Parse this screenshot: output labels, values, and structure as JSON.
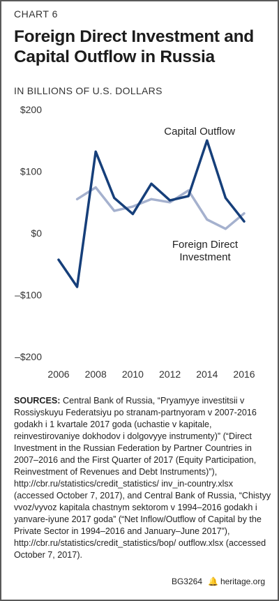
{
  "header": {
    "label": "CHART 6",
    "title": "Foreign Direct Investment and Capital Outflow in Russia",
    "subtitle": "IN BILLIONS OF U.S. DOLLARS"
  },
  "chart_data": {
    "type": "line",
    "x": [
      2006,
      2007,
      2008,
      2009,
      2010,
      2011,
      2012,
      2013,
      2014,
      2015,
      2016
    ],
    "xticks": [
      "2006",
      "2008",
      "2010",
      "2012",
      "2014",
      "2016"
    ],
    "yticks": [
      "$200",
      "$100",
      "$0",
      "–$100",
      "–$200"
    ],
    "ylim": [
      -200,
      200
    ],
    "xlim": [
      2006,
      2016
    ],
    "grid": false,
    "series": [
      {
        "name": "Capital Outflow",
        "color": "#163f7a",
        "values": [
          -43,
          -87,
          132,
          57,
          31,
          80,
          53,
          60,
          150,
          57,
          19
        ]
      },
      {
        "name": "Foreign Direct Investment",
        "color": "#a5b1ce",
        "values": [
          null,
          55,
          74,
          36,
          43,
          55,
          50,
          69,
          22,
          7,
          32
        ]
      }
    ],
    "annotations": {
      "capital_outflow": "Capital Outflow",
      "fdi_line1": "Foreign Direct",
      "fdi_line2": "Investment"
    }
  },
  "sources": {
    "head": "SOURCES:",
    "text": " Central Bank of Russia, “Pryamyye investitsii v Rossiyskuyu Federatsiyu po stranam-partnyoram v 2007-2016 godakh i 1 kvartale 2017 goda (uchastie v kapitale, reinvestirovaniye dokhodov i dolgovyye instrumenty)” (“Direct Investment in the Russian Federation by Partner Countries in 2007–2016 and the First Quarter of 2017 (Equity Participation, Reinvestment of Revenues and Debt Instruments)”), http://cbr.ru/statistics/credit_statistics/ inv_in-country.xlsx (accessed October 7, 2017), and Central Bank of Russia, “Chistyy vvoz/vyvoz kapitala chastnym sektorom v 1994–2016 godakh i yanvare-iyune 2017 goda” (“Net Inflow/Outflow of Capital by the Private Sector in 1994–2016 and January–June 2017”), http://cbr.ru/statistics/credit_statistics/bop/ outflow.xlsx (accessed October 7, 2017)."
  },
  "footer": {
    "code": "BG3264",
    "bell_icon": "🔔",
    "site": "heritage.org"
  }
}
